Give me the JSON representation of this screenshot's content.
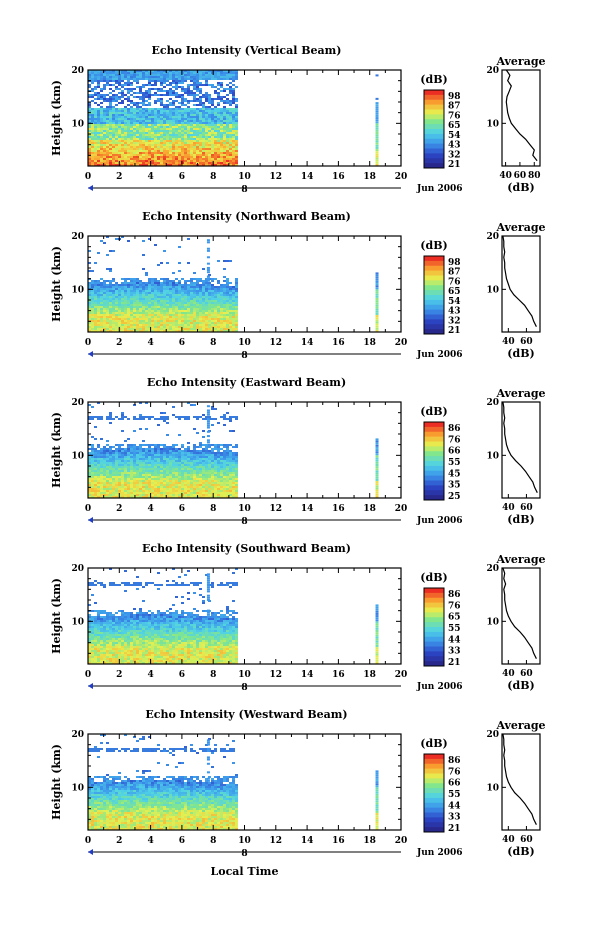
{
  "figure": {
    "xlabel_bottom": "Local Time",
    "date_label": "Jun 2006",
    "day_label": "8",
    "colorbar_unit": "(dB)",
    "average_title": "Average",
    "average_xlabel": "(dB)"
  },
  "chart_data": [
    {
      "type": "heatmap",
      "title": "Echo Intensity (Vertical Beam)",
      "ylabel": "Height (km)",
      "xlabel": "Local Time",
      "x_ticks": [
        0,
        2,
        4,
        6,
        8,
        10,
        12,
        14,
        16,
        18,
        20
      ],
      "y_ticks": [
        10,
        20
      ],
      "xlim": [
        0,
        20
      ],
      "ylim": [
        2,
        20
      ],
      "data_hours": [
        0,
        9.5
      ],
      "extra_column_hour": 18.5,
      "colorbar_labels": [
        "98",
        "87",
        "76",
        "65",
        "54",
        "43",
        "32",
        "21"
      ],
      "average": {
        "title": "Average",
        "xlabel": "(dB)",
        "x_ticks": [
          40,
          60,
          80
        ],
        "xlim": [
          35,
          88
        ],
        "y_ticks": [
          10,
          20
        ],
        "profile": [
          [
            3,
            84
          ],
          [
            4,
            78
          ],
          [
            5,
            80
          ],
          [
            6,
            74
          ],
          [
            7,
            68
          ],
          [
            8,
            60
          ],
          [
            9,
            54
          ],
          [
            10,
            48
          ],
          [
            11,
            45
          ],
          [
            12,
            43
          ],
          [
            13,
            42
          ],
          [
            14,
            41
          ],
          [
            15,
            42
          ],
          [
            16,
            45
          ],
          [
            17,
            48
          ],
          [
            18,
            43
          ],
          [
            19,
            46
          ],
          [
            20,
            41
          ]
        ]
      }
    },
    {
      "type": "heatmap",
      "title": "Echo Intensity (Northward Beam)",
      "ylabel": "Height (km)",
      "xlabel": "Local Time",
      "x_ticks": [
        0,
        2,
        4,
        6,
        8,
        10,
        12,
        14,
        16,
        18,
        20
      ],
      "y_ticks": [
        10,
        20
      ],
      "xlim": [
        0,
        20
      ],
      "ylim": [
        2,
        20
      ],
      "data_hours": [
        0,
        9.5
      ],
      "extra_column_hour": 18.5,
      "colorbar_labels": [
        "98",
        "87",
        "76",
        "65",
        "54",
        "43",
        "32",
        "21"
      ],
      "average": {
        "title": "Average",
        "xlabel": "(dB)",
        "x_ticks": [
          40,
          60
        ],
        "xlim": [
          33,
          75
        ],
        "y_ticks": [
          10,
          20
        ],
        "profile": [
          [
            3,
            71
          ],
          [
            4,
            68
          ],
          [
            5,
            66
          ],
          [
            6,
            62
          ],
          [
            7,
            58
          ],
          [
            8,
            52
          ],
          [
            9,
            46
          ],
          [
            10,
            42
          ],
          [
            11,
            40
          ],
          [
            12,
            38
          ],
          [
            13,
            37
          ],
          [
            14,
            36
          ],
          [
            15,
            36
          ],
          [
            16,
            35
          ],
          [
            17,
            36
          ],
          [
            18,
            35
          ],
          [
            19,
            35
          ],
          [
            20,
            34
          ]
        ]
      }
    },
    {
      "type": "heatmap",
      "title": "Echo Intensity (Eastward Beam)",
      "ylabel": "Height (km)",
      "xlabel": "Local Time",
      "x_ticks": [
        0,
        2,
        4,
        6,
        8,
        10,
        12,
        14,
        16,
        18,
        20
      ],
      "y_ticks": [
        10,
        20
      ],
      "xlim": [
        0,
        20
      ],
      "ylim": [
        2,
        20
      ],
      "data_hours": [
        0,
        9.5
      ],
      "extra_column_hour": 18.5,
      "colorbar_labels": [
        "86",
        "76",
        "66",
        "55",
        "45",
        "35",
        "25"
      ],
      "average": {
        "title": "Average",
        "xlabel": "(dB)",
        "x_ticks": [
          40,
          60
        ],
        "xlim": [
          33,
          75
        ],
        "y_ticks": [
          10,
          20
        ],
        "profile": [
          [
            3,
            72
          ],
          [
            4,
            69
          ],
          [
            5,
            67
          ],
          [
            6,
            63
          ],
          [
            7,
            59
          ],
          [
            8,
            54
          ],
          [
            9,
            48
          ],
          [
            10,
            43
          ],
          [
            11,
            40
          ],
          [
            12,
            38
          ],
          [
            13,
            37
          ],
          [
            14,
            36
          ],
          [
            15,
            36
          ],
          [
            16,
            35
          ],
          [
            17,
            36
          ],
          [
            18,
            35
          ],
          [
            19,
            35
          ],
          [
            20,
            34
          ]
        ]
      }
    },
    {
      "type": "heatmap",
      "title": "Echo Intensity (Southward Beam)",
      "ylabel": "Height (km)",
      "xlabel": "Local Time",
      "x_ticks": [
        0,
        2,
        4,
        6,
        8,
        10,
        12,
        14,
        16,
        18,
        20
      ],
      "y_ticks": [
        10,
        20
      ],
      "xlim": [
        0,
        20
      ],
      "ylim": [
        2,
        20
      ],
      "data_hours": [
        0,
        9.5
      ],
      "extra_column_hour": 18.5,
      "colorbar_labels": [
        "86",
        "76",
        "65",
        "55",
        "44",
        "33",
        "21"
      ],
      "average": {
        "title": "Average",
        "xlabel": "(dB)",
        "x_ticks": [
          40,
          60
        ],
        "xlim": [
          33,
          75
        ],
        "y_ticks": [
          10,
          20
        ],
        "profile": [
          [
            3,
            71
          ],
          [
            4,
            68
          ],
          [
            5,
            66
          ],
          [
            6,
            62
          ],
          [
            7,
            58
          ],
          [
            8,
            53
          ],
          [
            9,
            47
          ],
          [
            10,
            43
          ],
          [
            11,
            40
          ],
          [
            12,
            38
          ],
          [
            13,
            37
          ],
          [
            14,
            36
          ],
          [
            15,
            36
          ],
          [
            16,
            35
          ],
          [
            17,
            37
          ],
          [
            18,
            35
          ],
          [
            19,
            36
          ],
          [
            20,
            34
          ]
        ]
      }
    },
    {
      "type": "heatmap",
      "title": "Echo Intensity (Westward Beam)",
      "ylabel": "Height (km)",
      "xlabel": "Local Time",
      "x_ticks": [
        0,
        2,
        4,
        6,
        8,
        10,
        12,
        14,
        16,
        18,
        20
      ],
      "y_ticks": [
        10,
        20
      ],
      "xlim": [
        0,
        20
      ],
      "ylim": [
        2,
        20
      ],
      "data_hours": [
        0,
        9.5
      ],
      "extra_column_hour": 18.5,
      "colorbar_labels": [
        "86",
        "76",
        "66",
        "55",
        "44",
        "33",
        "21"
      ],
      "average": {
        "title": "Average",
        "xlabel": "(dB)",
        "x_ticks": [
          40,
          60
        ],
        "xlim": [
          33,
          75
        ],
        "y_ticks": [
          10,
          20
        ],
        "profile": [
          [
            3,
            71
          ],
          [
            4,
            68
          ],
          [
            5,
            66
          ],
          [
            6,
            62
          ],
          [
            7,
            58
          ],
          [
            8,
            53
          ],
          [
            9,
            47
          ],
          [
            10,
            43
          ],
          [
            11,
            40
          ],
          [
            12,
            38
          ],
          [
            13,
            37
          ],
          [
            14,
            36
          ],
          [
            15,
            36
          ],
          [
            16,
            35
          ],
          [
            17,
            36
          ],
          [
            18,
            35
          ],
          [
            19,
            35
          ],
          [
            20,
            34
          ]
        ]
      }
    }
  ]
}
